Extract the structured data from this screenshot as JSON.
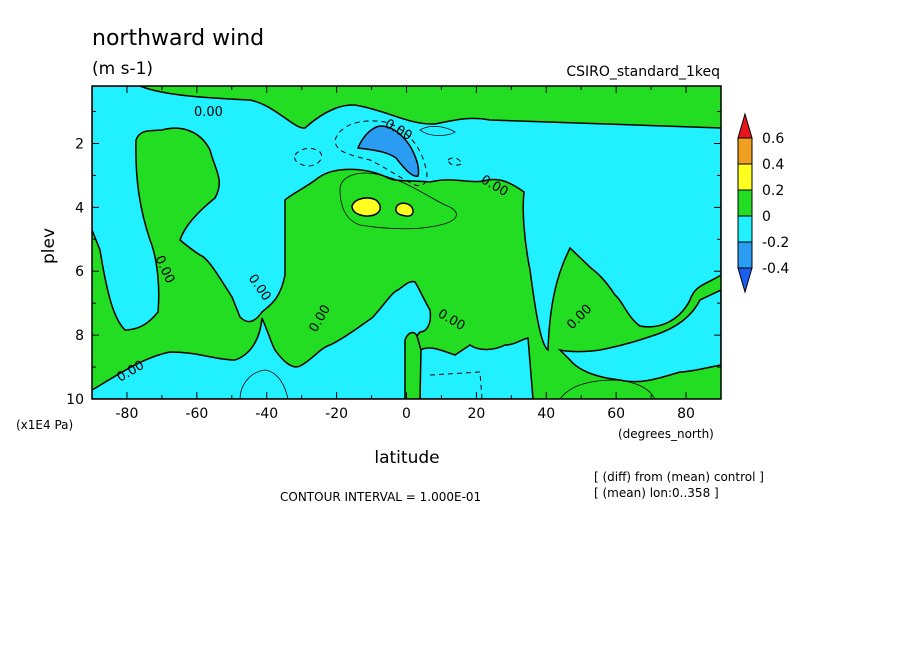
{
  "chart_data": {
    "type": "heatmap",
    "subtype": "filled-contour",
    "title": "northward wind",
    "units": "(m s-1)",
    "run_label": "CSIRO_standard_1keq",
    "xlabel": "latitude",
    "x_units": "(degrees_north)",
    "ylabel": "plev",
    "y_units": "(x1E4 Pa)",
    "xlim": [
      -90,
      90
    ],
    "ylim": [
      10,
      0.2
    ],
    "y_inverted": true,
    "x_ticks": [
      -80,
      -60,
      -40,
      -20,
      0,
      20,
      40,
      60,
      80
    ],
    "y_ticks": [
      2,
      4,
      6,
      8,
      10
    ],
    "contour_interval": "CONTOUR INTERVAL = 1.000E-01",
    "notes": [
      "[ (diff) from (mean) control ]",
      "[ (mean) lon:0..358 ]"
    ],
    "contour_labels": [
      "0.00",
      "0.00",
      "0.00",
      "0.00",
      "0.00",
      "0.00",
      "0.00",
      "0.00",
      "0.00"
    ],
    "colorbar": {
      "levels": [
        "0.6",
        "0.4",
        "0.2",
        "0",
        "-0.2",
        "-0.4"
      ],
      "colors": [
        "#e8141e",
        "#f0a020",
        "#ffff20",
        "#22dd22",
        "#20f0ff",
        "#2a9cf2",
        "#1c5ef0"
      ]
    },
    "regions": [
      {
        "value_range": "0 to 0.2",
        "color": "#22dd22",
        "description": "positive band / background"
      },
      {
        "value_range": "-0.2 to 0",
        "color": "#20f0ff",
        "description": "negative regions"
      },
      {
        "value_range": "-0.4 to -0.2",
        "color": "#2a9cf2",
        "description": "minimum near -10 lat, plev 2"
      },
      {
        "value_range": "0.2 to 0.4",
        "color": "#ffff20",
        "description": "maxima near -12 and 0 lat, plev 4"
      }
    ]
  }
}
